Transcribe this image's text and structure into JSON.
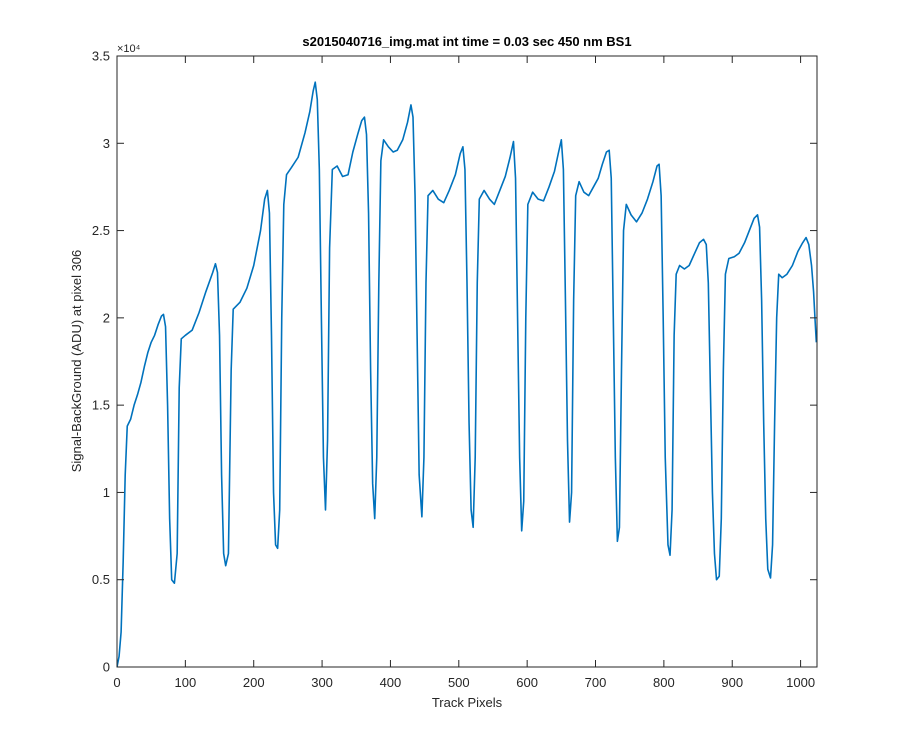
{
  "chart_data": {
    "type": "line",
    "title": "s2015040716_img.mat int time = 0.03 sec  450 nm BS1",
    "xlabel": "Track Pixels",
    "ylabel": "Signal-BackGround (ADU) at pixel 306",
    "y_exponent_label": "×10⁴",
    "y_multiplier": 10000,
    "xlim": [
      0,
      1024
    ],
    "ylim": [
      0,
      35000
    ],
    "xticks": [
      0,
      100,
      200,
      300,
      400,
      500,
      600,
      700,
      800,
      900,
      1000
    ],
    "yticks": [
      0,
      5000,
      10000,
      15000,
      20000,
      25000,
      30000,
      35000
    ],
    "ytick_labels": [
      "0",
      "0.5",
      "1",
      "1.5",
      "2",
      "2.5",
      "3",
      "3.5"
    ],
    "grid": false,
    "series": [
      {
        "name": "",
        "color": "#0072BD",
        "points": [
          [
            0,
            0
          ],
          [
            3,
            600
          ],
          [
            6,
            2000
          ],
          [
            9,
            6000
          ],
          [
            12,
            11000
          ],
          [
            15,
            13800
          ],
          [
            20,
            14200
          ],
          [
            25,
            15000
          ],
          [
            30,
            15600
          ],
          [
            35,
            16300
          ],
          [
            40,
            17200
          ],
          [
            45,
            18000
          ],
          [
            50,
            18600
          ],
          [
            55,
            19000
          ],
          [
            60,
            19600
          ],
          [
            65,
            20100
          ],
          [
            68,
            20200
          ],
          [
            71,
            19500
          ],
          [
            74,
            15000
          ],
          [
            77,
            8500
          ],
          [
            80,
            5000
          ],
          [
            84,
            4800
          ],
          [
            88,
            6500
          ],
          [
            91,
            16000
          ],
          [
            94,
            18800
          ],
          [
            100,
            19000
          ],
          [
            110,
            19300
          ],
          [
            120,
            20300
          ],
          [
            130,
            21500
          ],
          [
            140,
            22600
          ],
          [
            144,
            23100
          ],
          [
            147,
            22600
          ],
          [
            150,
            19000
          ],
          [
            153,
            11000
          ],
          [
            156,
            6500
          ],
          [
            159,
            5800
          ],
          [
            163,
            6500
          ],
          [
            167,
            17000
          ],
          [
            170,
            20500
          ],
          [
            180,
            20900
          ],
          [
            190,
            21700
          ],
          [
            200,
            23000
          ],
          [
            210,
            25000
          ],
          [
            216,
            26800
          ],
          [
            220,
            27300
          ],
          [
            223,
            26000
          ],
          [
            226,
            19000
          ],
          [
            229,
            10000
          ],
          [
            232,
            7000
          ],
          [
            235,
            6800
          ],
          [
            238,
            9000
          ],
          [
            241,
            20000
          ],
          [
            244,
            26500
          ],
          [
            248,
            28200
          ],
          [
            255,
            28600
          ],
          [
            265,
            29200
          ],
          [
            275,
            30600
          ],
          [
            282,
            31800
          ],
          [
            287,
            33000
          ],
          [
            290,
            33500
          ],
          [
            293,
            32500
          ],
          [
            296,
            28500
          ],
          [
            299,
            20000
          ],
          [
            302,
            12000
          ],
          [
            305,
            9000
          ],
          [
            308,
            13000
          ],
          [
            311,
            24000
          ],
          [
            315,
            28500
          ],
          [
            322,
            28700
          ],
          [
            330,
            28100
          ],
          [
            338,
            28200
          ],
          [
            345,
            29500
          ],
          [
            352,
            30500
          ],
          [
            358,
            31300
          ],
          [
            362,
            31500
          ],
          [
            365,
            30500
          ],
          [
            368,
            26000
          ],
          [
            371,
            17000
          ],
          [
            374,
            10500
          ],
          [
            377,
            8500
          ],
          [
            380,
            12000
          ],
          [
            383,
            22000
          ],
          [
            386,
            29000
          ],
          [
            390,
            30200
          ],
          [
            397,
            29800
          ],
          [
            404,
            29500
          ],
          [
            410,
            29600
          ],
          [
            418,
            30200
          ],
          [
            425,
            31200
          ],
          [
            430,
            32200
          ],
          [
            433,
            31500
          ],
          [
            436,
            27000
          ],
          [
            439,
            19000
          ],
          [
            442,
            11000
          ],
          [
            446,
            8600
          ],
          [
            449,
            12000
          ],
          [
            452,
            22000
          ],
          [
            455,
            27000
          ],
          [
            462,
            27300
          ],
          [
            470,
            26800
          ],
          [
            478,
            26600
          ],
          [
            486,
            27300
          ],
          [
            495,
            28200
          ],
          [
            502,
            29400
          ],
          [
            506,
            29800
          ],
          [
            509,
            28500
          ],
          [
            512,
            22000
          ],
          [
            515,
            14000
          ],
          [
            518,
            9000
          ],
          [
            521,
            8000
          ],
          [
            524,
            12000
          ],
          [
            527,
            22000
          ],
          [
            530,
            26800
          ],
          [
            537,
            27300
          ],
          [
            545,
            26800
          ],
          [
            552,
            26500
          ],
          [
            560,
            27300
          ],
          [
            568,
            28100
          ],
          [
            575,
            29200
          ],
          [
            580,
            30100
          ],
          [
            583,
            28000
          ],
          [
            586,
            20000
          ],
          [
            589,
            12000
          ],
          [
            592,
            7800
          ],
          [
            595,
            9500
          ],
          [
            598,
            20000
          ],
          [
            601,
            26500
          ],
          [
            608,
            27200
          ],
          [
            616,
            26800
          ],
          [
            624,
            26700
          ],
          [
            632,
            27500
          ],
          [
            640,
            28400
          ],
          [
            646,
            29500
          ],
          [
            650,
            30200
          ],
          [
            653,
            28500
          ],
          [
            656,
            21000
          ],
          [
            659,
            13000
          ],
          [
            662,
            8300
          ],
          [
            665,
            10000
          ],
          [
            668,
            21000
          ],
          [
            671,
            27000
          ],
          [
            676,
            27800
          ],
          [
            683,
            27200
          ],
          [
            690,
            27000
          ],
          [
            697,
            27500
          ],
          [
            704,
            28000
          ],
          [
            710,
            28800
          ],
          [
            716,
            29500
          ],
          [
            720,
            29600
          ],
          [
            723,
            28000
          ],
          [
            726,
            20000
          ],
          [
            729,
            12000
          ],
          [
            732,
            7200
          ],
          [
            735,
            8000
          ],
          [
            738,
            17000
          ],
          [
            741,
            25000
          ],
          [
            745,
            26500
          ],
          [
            752,
            25900
          ],
          [
            760,
            25500
          ],
          [
            768,
            26000
          ],
          [
            776,
            26800
          ],
          [
            784,
            27800
          ],
          [
            790,
            28700
          ],
          [
            793,
            28800
          ],
          [
            796,
            27000
          ],
          [
            799,
            20000
          ],
          [
            802,
            12000
          ],
          [
            806,
            7000
          ],
          [
            809,
            6400
          ],
          [
            812,
            9000
          ],
          [
            815,
            19000
          ],
          [
            818,
            22500
          ],
          [
            823,
            23000
          ],
          [
            830,
            22800
          ],
          [
            837,
            23000
          ],
          [
            845,
            23700
          ],
          [
            852,
            24300
          ],
          [
            858,
            24500
          ],
          [
            862,
            24200
          ],
          [
            865,
            22000
          ],
          [
            868,
            16000
          ],
          [
            871,
            10000
          ],
          [
            874,
            6500
          ],
          [
            877,
            5000
          ],
          [
            881,
            5200
          ],
          [
            884,
            8500
          ],
          [
            887,
            17000
          ],
          [
            890,
            22500
          ],
          [
            895,
            23400
          ],
          [
            903,
            23500
          ],
          [
            910,
            23700
          ],
          [
            918,
            24300
          ],
          [
            925,
            25000
          ],
          [
            932,
            25700
          ],
          [
            937,
            25900
          ],
          [
            940,
            25200
          ],
          [
            943,
            21000
          ],
          [
            946,
            14000
          ],
          [
            949,
            8500
          ],
          [
            952,
            5600
          ],
          [
            956,
            5100
          ],
          [
            959,
            7000
          ],
          [
            962,
            14000
          ],
          [
            965,
            20000
          ],
          [
            968,
            22500
          ],
          [
            973,
            22300
          ],
          [
            980,
            22500
          ],
          [
            988,
            23000
          ],
          [
            996,
            23800
          ],
          [
            1003,
            24300
          ],
          [
            1008,
            24600
          ],
          [
            1012,
            24200
          ],
          [
            1016,
            23000
          ],
          [
            1019,
            21500
          ],
          [
            1021,
            20000
          ],
          [
            1023,
            18600
          ]
        ]
      }
    ]
  }
}
